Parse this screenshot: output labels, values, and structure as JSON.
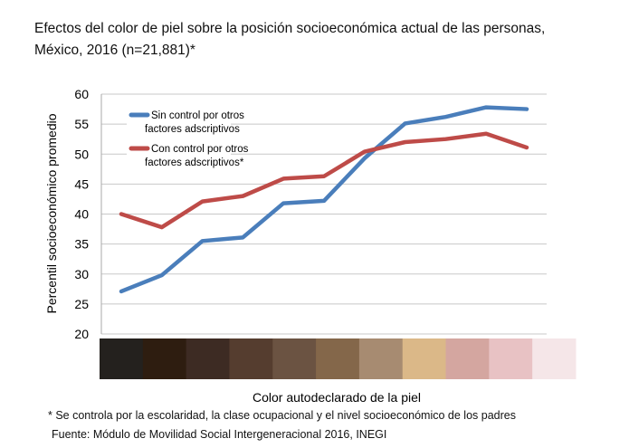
{
  "chart_data": {
    "type": "line",
    "title_line1": "Efectos del color de piel sobre la posición socioeconómica actual de las personas,",
    "title_line2": "México, 2016  (n=21,881)*",
    "xlabel": "Color autodeclarado de la piel",
    "ylabel": "Percentil socioeconómico promedio",
    "ylim": [
      20,
      60
    ],
    "yticks": [
      "20",
      "25",
      "30",
      "35",
      "40",
      "45",
      "50",
      "55",
      "60"
    ],
    "grid": true,
    "legend_placement": "top-left",
    "skin_colors": [
      "#24211e",
      "#2e1d10",
      "#3d2b23",
      "#553d2f",
      "#6b5342",
      "#84674a",
      "#a78b71",
      "#dbb888",
      "#d4a6a0",
      "#e8c2c4",
      "#f5e6e8"
    ],
    "series": [
      {
        "name_line1": "Sin control por otros",
        "name_line2": "factores adscriptivos",
        "color": "#4a7ebb",
        "values": [
          27.1,
          29.8,
          35.5,
          36.1,
          41.8,
          42.2,
          49.3,
          55.1,
          56.2,
          57.8,
          57.5
        ]
      },
      {
        "name_line1": "Con control por otros",
        "name_line2": "factores adscriptivos*",
        "color": "#be4b48",
        "values": [
          40.0,
          37.8,
          42.1,
          43.0,
          45.9,
          46.3,
          50.4,
          52.0,
          52.5,
          53.4,
          51.1
        ]
      }
    ]
  },
  "footnotes": {
    "note": "* Se controla por la escolaridad, la clase ocupacional y el nivel socioeconómico de los padres",
    "source": "Fuente: Módulo de Movilidad Social Intergeneracional 2016, INEGI"
  }
}
